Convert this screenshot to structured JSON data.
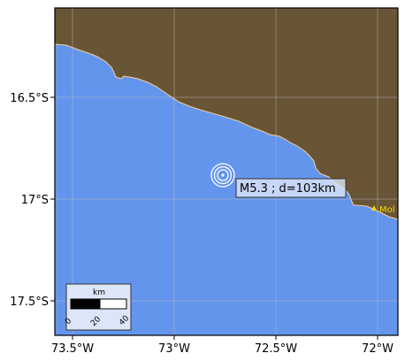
{
  "map": {
    "x_ticks": [
      "73.5°W",
      "73°W",
      "72.5°W",
      "72°W"
    ],
    "y_ticks": [
      "16.5°S",
      "17°S",
      "17.5°S"
    ],
    "colors": {
      "land": "#685535",
      "ocean": "#6495ED",
      "coast": "#f1cf9a",
      "grid": "#bfbfbf",
      "town": "#ffd700",
      "callout_bg": "#dde6f8",
      "scale_bg": "#dde6f8"
    }
  },
  "event": {
    "label": "M5.3 ; d=103km",
    "magnitude": 5.3,
    "depth_km": 103,
    "marker_icon": "concentric-circles-icon"
  },
  "town": {
    "label": "Mol",
    "marker_icon": "triangle-icon"
  },
  "scale_bar": {
    "unit": "km",
    "labels": [
      "0",
      "20",
      "40"
    ]
  }
}
